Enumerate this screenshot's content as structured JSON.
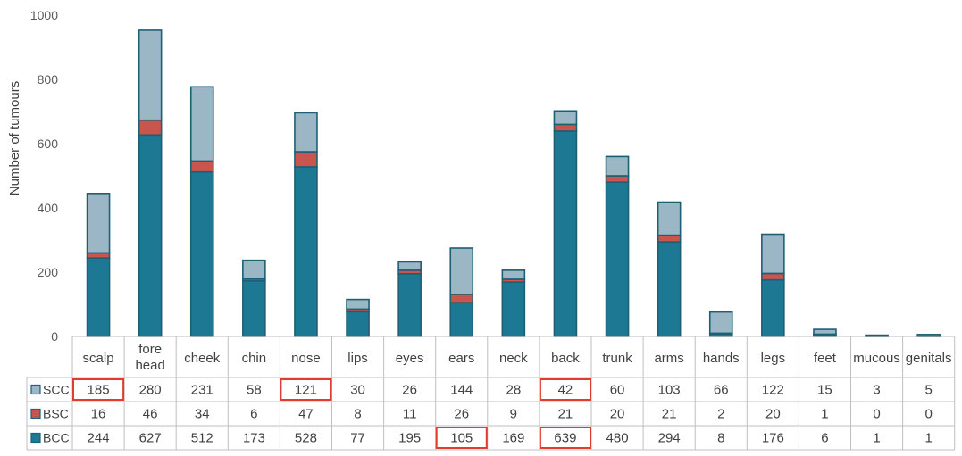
{
  "chart_data": {
    "type": "bar",
    "stacked": true,
    "ylabel": "Number of tumours",
    "ylim": [
      0,
      1000
    ],
    "yticks": [
      0,
      200,
      400,
      600,
      800,
      1000
    ],
    "categories": [
      "scalp",
      "fore\nhead",
      "cheek",
      "chin",
      "nose",
      "lips",
      "eyes",
      "ears",
      "neck",
      "back",
      "trunk",
      "arms",
      "hands",
      "legs",
      "feet",
      "mucous",
      "genitals"
    ],
    "series": [
      {
        "name": "SCC",
        "color": "#9bb7c5",
        "values": [
          185,
          280,
          231,
          58,
          121,
          30,
          26,
          144,
          28,
          42,
          60,
          103,
          66,
          122,
          15,
          3,
          5
        ]
      },
      {
        "name": "BSC",
        "color": "#c9554f",
        "values": [
          16,
          46,
          34,
          6,
          47,
          8,
          11,
          26,
          9,
          21,
          20,
          21,
          2,
          20,
          1,
          0,
          0
        ]
      },
      {
        "name": "BCC",
        "color": "#1d7894",
        "values": [
          244,
          627,
          512,
          173,
          528,
          77,
          195,
          105,
          169,
          639,
          480,
          294,
          8,
          176,
          6,
          1,
          1
        ]
      }
    ],
    "highlighted_cells": [
      {
        "series": "SCC",
        "category": "scalp"
      },
      {
        "series": "SCC",
        "category": "nose"
      },
      {
        "series": "SCC",
        "category": "back"
      },
      {
        "series": "BCC",
        "category": "ears"
      },
      {
        "series": "BCC",
        "category": "back"
      }
    ],
    "legend": "data-table"
  }
}
